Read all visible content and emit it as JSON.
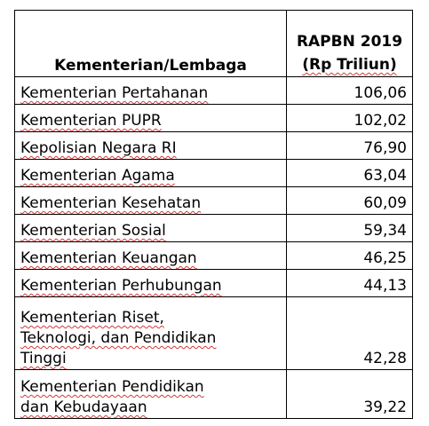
{
  "table": {
    "header": {
      "name": "Kementerian/Lembaga",
      "value_line1": "RAPBN 2019",
      "value_line2": "(Rp Triliun)"
    },
    "rows": [
      {
        "name": "Kementerian Pertahanan",
        "value": "106,06"
      },
      {
        "name": "Kementerian PUPR",
        "value": "102,02"
      },
      {
        "name": "Kepolisian Negara RI",
        "value": "76,90"
      },
      {
        "name": "Kementerian Agama",
        "value": "63,04"
      },
      {
        "name": "Kementerian Kesehatan",
        "value": "60,09"
      },
      {
        "name": "Kementerian Sosial",
        "value": "59,34"
      },
      {
        "name": "Kementerian Keuangan",
        "value": "46,25"
      },
      {
        "name": "Kementerian Perhubungan",
        "value": "44,13"
      },
      {
        "name": "Kementerian Riset,\nTeknologi, dan Pendidikan\nTinggi",
        "value": "42,28"
      },
      {
        "name": "Kementerian Pendidikan\ndan Kebudayaan",
        "value": "39,22"
      }
    ]
  }
}
